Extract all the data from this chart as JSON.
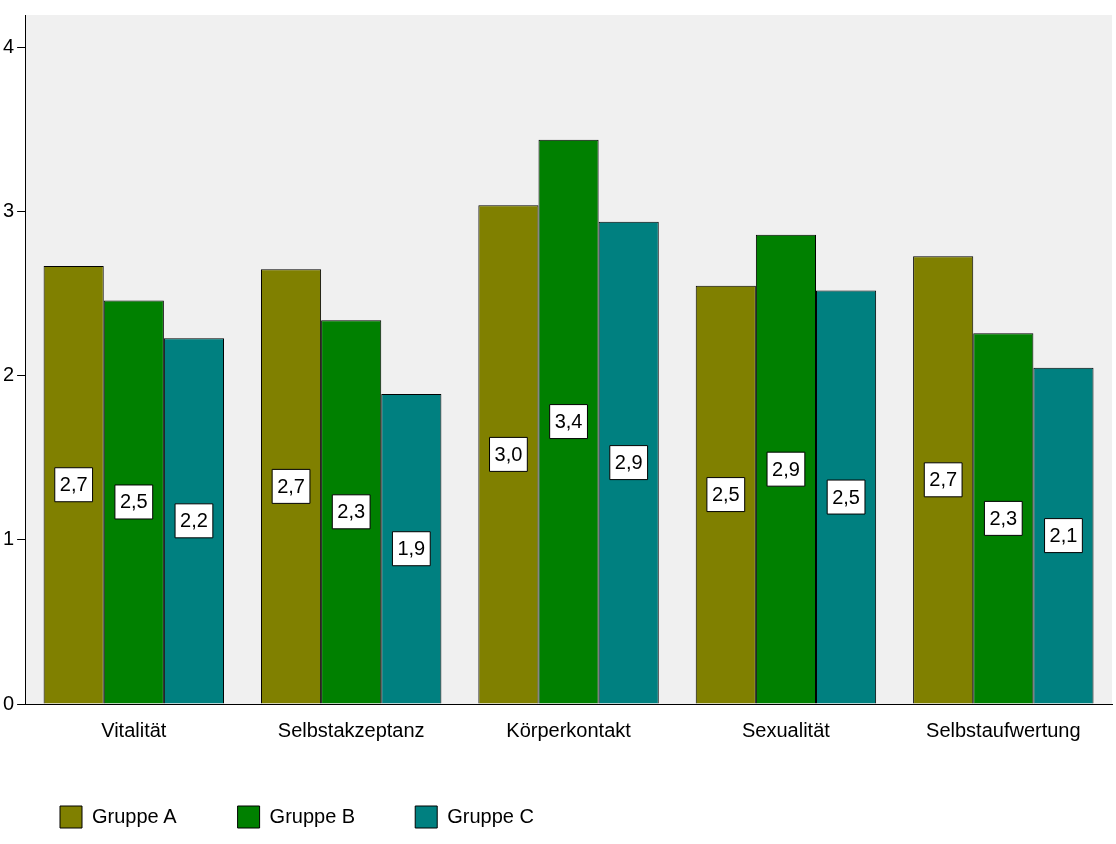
{
  "chart_data": {
    "type": "bar",
    "categories": [
      "Vitalität",
      "Selbstakzeptanz",
      "Körperkontakt",
      "Sexualität",
      "Selbstaufwertung"
    ],
    "series": [
      {
        "name": "Gruppe A",
        "color": "#808000",
        "values": [
          2.67,
          2.65,
          3.04,
          2.55,
          2.73
        ],
        "value_labels": [
          "2,7",
          "2,7",
          "3,0",
          "2,5",
          "2,7"
        ]
      },
      {
        "name": "Gruppe B",
        "color": "#008000",
        "values": [
          2.46,
          2.34,
          3.44,
          2.86,
          2.26
        ],
        "value_labels": [
          "2,5",
          "2,3",
          "3,4",
          "2,9",
          "2,3"
        ]
      },
      {
        "name": "Gruppe C",
        "color": "#008080",
        "values": [
          2.23,
          1.89,
          2.94,
          2.52,
          2.05
        ],
        "value_labels": [
          "2,2",
          "1,9",
          "2,9",
          "2,5",
          "2,1"
        ]
      }
    ],
    "ylim": [
      0,
      4.2
    ],
    "yticks": [
      0,
      1,
      2,
      3,
      4
    ],
    "grid": false,
    "legend": "bottom left"
  }
}
